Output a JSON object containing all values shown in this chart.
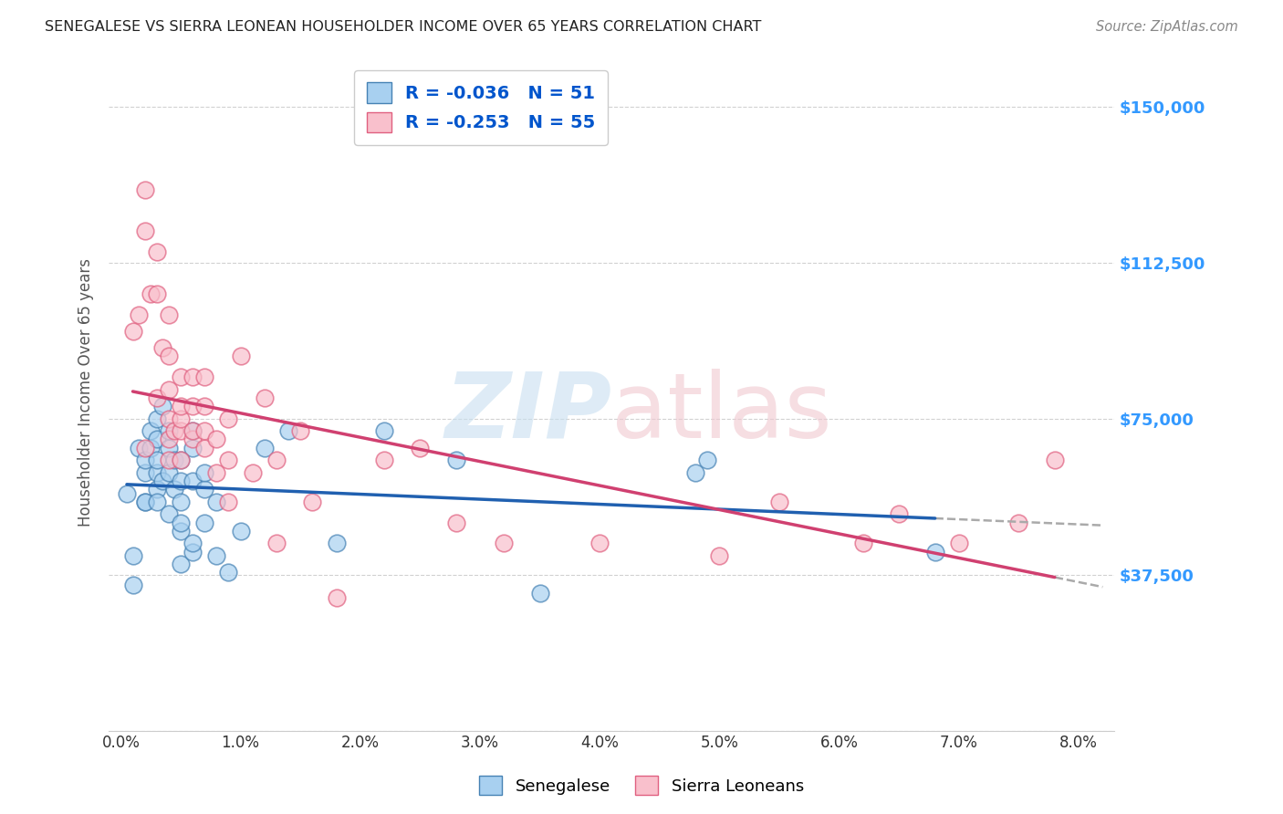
{
  "title": "SENEGALESE VS SIERRA LEONEAN HOUSEHOLDER INCOME OVER 65 YEARS CORRELATION CHART",
  "source": "Source: ZipAtlas.com",
  "xlabel_ticks": [
    "0.0%",
    "1.0%",
    "2.0%",
    "3.0%",
    "4.0%",
    "5.0%",
    "6.0%",
    "7.0%",
    "8.0%"
  ],
  "xlabel_vals": [
    0.0,
    0.01,
    0.02,
    0.03,
    0.04,
    0.05,
    0.06,
    0.07,
    0.08
  ],
  "ylabel": "Householder Income Over 65 years",
  "ylabel_ticks_right": [
    "$37,500",
    "$75,000",
    "$112,500",
    "$150,000"
  ],
  "ylabel_vals": [
    0,
    37500,
    75000,
    112500,
    150000
  ],
  "ylabel_vals_right": [
    37500,
    75000,
    112500,
    150000
  ],
  "ylim": [
    0,
    162500
  ],
  "xlim": [
    -0.001,
    0.083
  ],
  "legend_blue_r": "-0.036",
  "legend_blue_n": "51",
  "legend_pink_r": "-0.253",
  "legend_pink_n": "55",
  "blue_face_color": "#a8d0f0",
  "pink_face_color": "#f9c0cc",
  "blue_edge_color": "#4682b4",
  "pink_edge_color": "#e06080",
  "blue_line_color": "#2060b0",
  "pink_line_color": "#d04070",
  "dash_color": "#aaaaaa",
  "background_color": "#ffffff",
  "grid_color": "#cccccc",
  "title_color": "#222222",
  "axis_label_color": "#555555",
  "right_tick_color": "#3399ff",
  "legend_text_color": "#0055cc",
  "blue_scatter_x": [
    0.0005,
    0.001,
    0.001,
    0.0015,
    0.002,
    0.002,
    0.002,
    0.002,
    0.0025,
    0.0025,
    0.003,
    0.003,
    0.003,
    0.003,
    0.003,
    0.003,
    0.0035,
    0.0035,
    0.004,
    0.004,
    0.004,
    0.004,
    0.0045,
    0.0045,
    0.005,
    0.005,
    0.005,
    0.005,
    0.005,
    0.005,
    0.006,
    0.006,
    0.006,
    0.006,
    0.006,
    0.007,
    0.007,
    0.007,
    0.008,
    0.008,
    0.009,
    0.01,
    0.012,
    0.014,
    0.018,
    0.022,
    0.028,
    0.035,
    0.048,
    0.049,
    0.068
  ],
  "blue_scatter_y": [
    57000,
    42000,
    35000,
    68000,
    55000,
    62000,
    65000,
    55000,
    68000,
    72000,
    75000,
    58000,
    62000,
    65000,
    70000,
    55000,
    60000,
    78000,
    52000,
    62000,
    68000,
    72000,
    65000,
    58000,
    48000,
    50000,
    55000,
    60000,
    65000,
    40000,
    43000,
    45000,
    60000,
    68000,
    72000,
    50000,
    58000,
    62000,
    42000,
    55000,
    38000,
    48000,
    68000,
    72000,
    45000,
    72000,
    65000,
    33000,
    62000,
    65000,
    43000
  ],
  "pink_scatter_x": [
    0.001,
    0.0015,
    0.002,
    0.002,
    0.002,
    0.0025,
    0.003,
    0.003,
    0.003,
    0.0035,
    0.004,
    0.004,
    0.004,
    0.004,
    0.004,
    0.004,
    0.0045,
    0.005,
    0.005,
    0.005,
    0.005,
    0.005,
    0.006,
    0.006,
    0.006,
    0.006,
    0.007,
    0.007,
    0.007,
    0.007,
    0.008,
    0.008,
    0.009,
    0.009,
    0.009,
    0.01,
    0.011,
    0.012,
    0.013,
    0.013,
    0.015,
    0.016,
    0.018,
    0.022,
    0.025,
    0.028,
    0.032,
    0.04,
    0.05,
    0.055,
    0.062,
    0.065,
    0.07,
    0.075,
    0.078
  ],
  "pink_scatter_y": [
    96000,
    100000,
    130000,
    120000,
    68000,
    105000,
    115000,
    105000,
    80000,
    92000,
    75000,
    82000,
    90000,
    100000,
    70000,
    65000,
    72000,
    65000,
    72000,
    75000,
    78000,
    85000,
    70000,
    72000,
    78000,
    85000,
    68000,
    72000,
    78000,
    85000,
    62000,
    70000,
    55000,
    65000,
    75000,
    90000,
    62000,
    80000,
    45000,
    65000,
    72000,
    55000,
    32000,
    65000,
    68000,
    50000,
    45000,
    45000,
    42000,
    55000,
    45000,
    52000,
    45000,
    50000,
    65000
  ],
  "zip_color": "#c8dff0",
  "atlas_color": "#f0c8d0"
}
